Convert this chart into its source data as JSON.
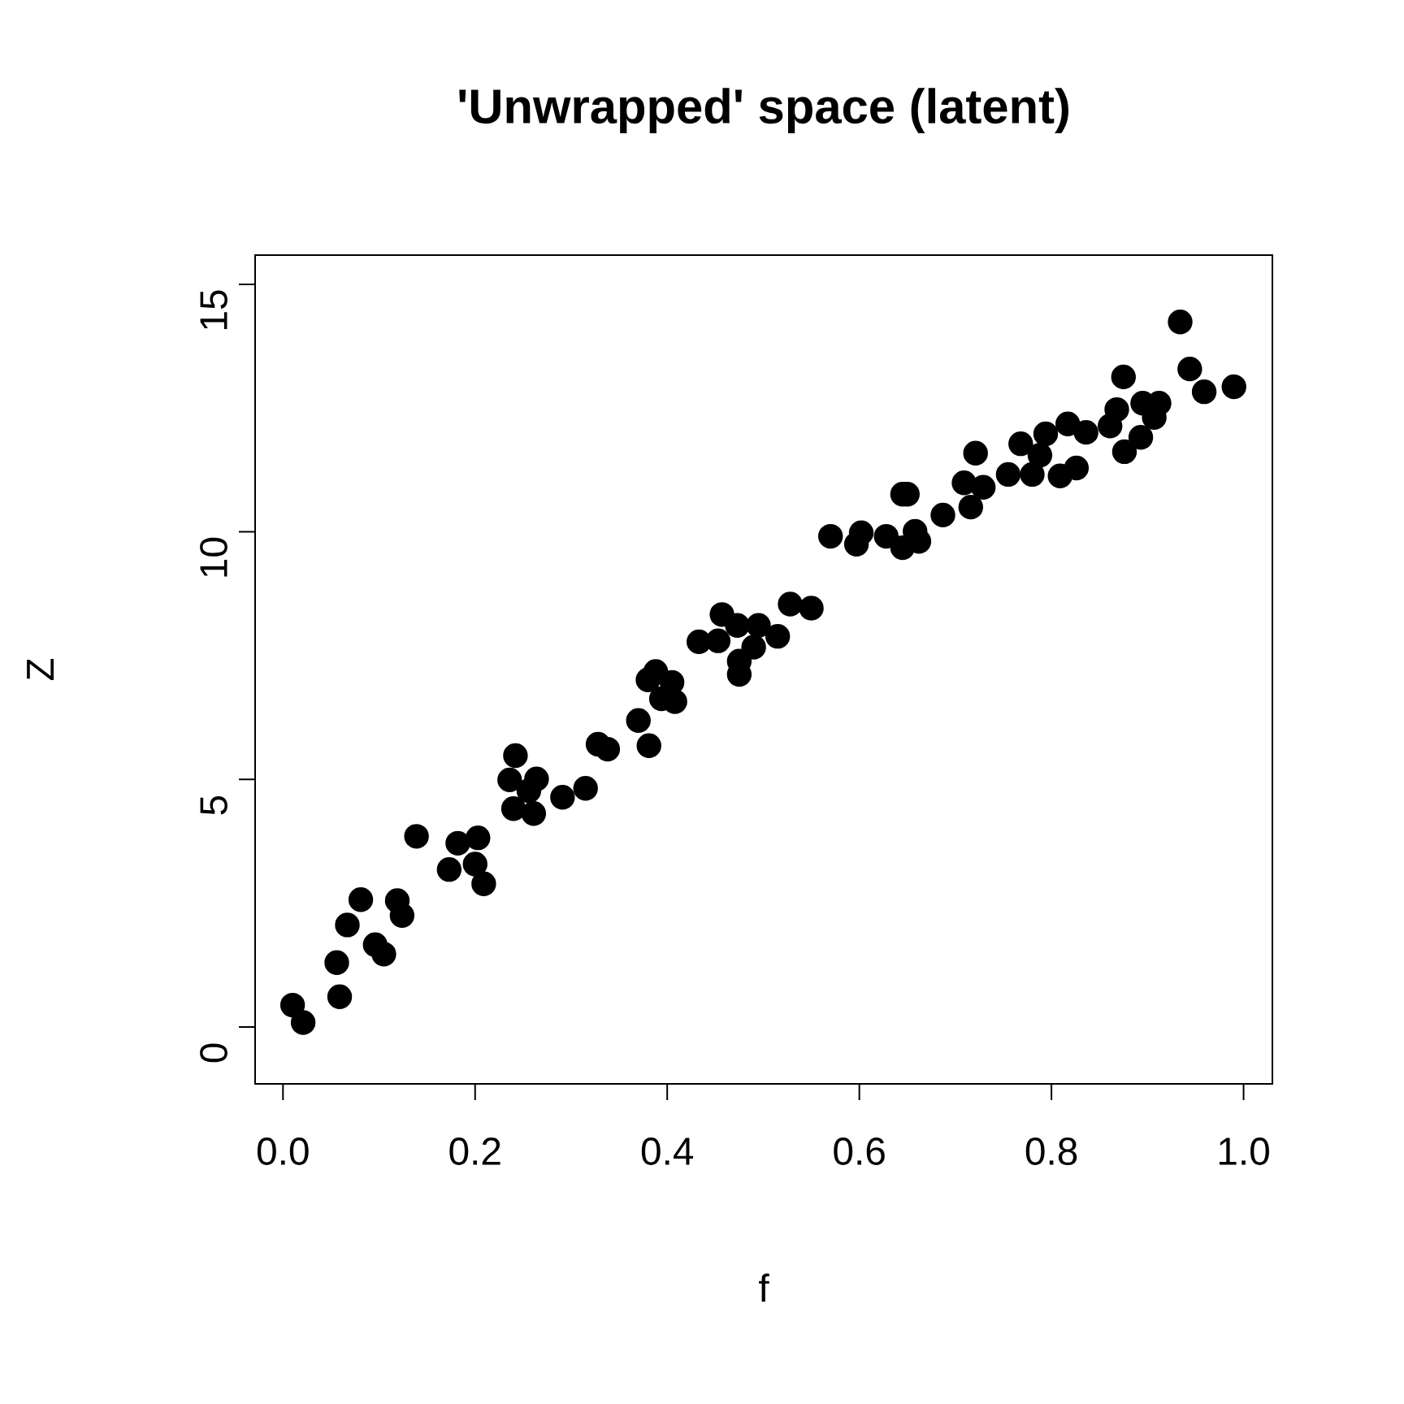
{
  "chart_data": {
    "type": "scatter",
    "title": "'Unwrapped' space (latent)",
    "xlabel": "f",
    "ylabel": "Z",
    "color": "#000000",
    "marker": "circle",
    "x": [
      0.01,
      0.021,
      0.056,
      0.059,
      0.067,
      0.081,
      0.096,
      0.105,
      0.119,
      0.124,
      0.139,
      0.173,
      0.182,
      0.203,
      0.2,
      0.209,
      0.242,
      0.236,
      0.264,
      0.256,
      0.24,
      0.261,
      0.291,
      0.315,
      0.328,
      0.338,
      0.37,
      0.381,
      0.38,
      0.405,
      0.394,
      0.408,
      0.388,
      0.433,
      0.453,
      0.457,
      0.473,
      0.495,
      0.515,
      0.49,
      0.475,
      0.475,
      0.528,
      0.55,
      0.57,
      0.597,
      0.602,
      0.628,
      0.645,
      0.658,
      0.662,
      0.687,
      0.645,
      0.65,
      0.709,
      0.716,
      0.729,
      0.721,
      0.755,
      0.78,
      0.768,
      0.788,
      0.794,
      0.809,
      0.826,
      0.817,
      0.836,
      0.861,
      0.868,
      0.875,
      0.876,
      0.893,
      0.895,
      0.912,
      0.907,
      0.934,
      0.944,
      0.959,
      0.99
    ],
    "values": [
      0.44,
      0.09,
      1.3,
      0.61,
      2.06,
      2.57,
      1.66,
      1.47,
      2.55,
      2.25,
      3.85,
      3.18,
      3.71,
      3.82,
      3.29,
      2.89,
      5.48,
      4.99,
      5.01,
      4.77,
      4.41,
      4.31,
      4.64,
      4.82,
      5.71,
      5.61,
      6.19,
      5.68,
      7.01,
      6.96,
      6.63,
      6.57,
      7.18,
      7.78,
      7.8,
      8.33,
      8.11,
      8.11,
      7.89,
      7.67,
      7.39,
      7.12,
      8.54,
      8.46,
      9.91,
      9.75,
      9.98,
      9.91,
      9.68,
      10.01,
      9.81,
      10.34,
      10.76,
      10.76,
      10.99,
      10.5,
      10.9,
      11.59,
      11.16,
      11.16,
      11.78,
      11.55,
      11.98,
      11.13,
      11.29,
      12.18,
      12.01,
      12.14,
      12.47,
      13.13,
      11.62,
      11.91,
      12.6,
      12.6,
      12.31,
      14.24,
      13.29,
      12.83,
      12.93
    ],
    "xlim": [
      -0.029,
      1.03
    ],
    "ylim": [
      -1.15,
      15.59
    ],
    "xticks": [
      {
        "value": 0,
        "label": "0.0"
      },
      {
        "value": 0.2,
        "label": "0.2"
      },
      {
        "value": 0.4,
        "label": "0.4"
      },
      {
        "value": 0.6,
        "label": "0.6"
      },
      {
        "value": 0.8,
        "label": "0.8"
      },
      {
        "value": 1,
        "label": "1.0"
      }
    ],
    "yticks": [
      0,
      5,
      10,
      15
    ]
  }
}
